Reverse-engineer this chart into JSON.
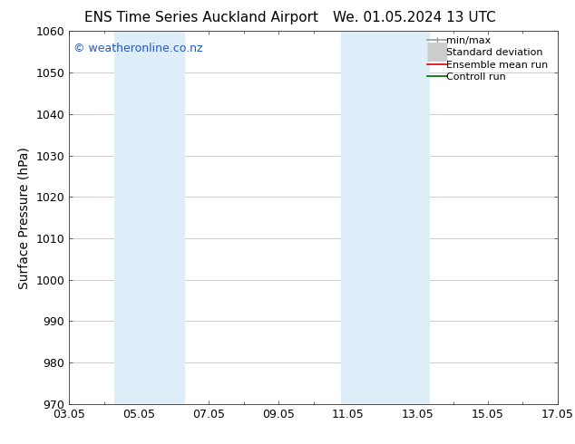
{
  "title_left": "ENS Time Series Auckland Airport",
  "title_right": "We. 01.05.2024 13 UTC",
  "ylabel": "Surface Pressure (hPa)",
  "ylim": [
    970,
    1060
  ],
  "yticks": [
    970,
    980,
    990,
    1000,
    1010,
    1020,
    1030,
    1040,
    1050,
    1060
  ],
  "xtick_labels": [
    "03.05",
    "05.05",
    "07.05",
    "09.05",
    "11.05",
    "13.05",
    "15.05",
    "17.05"
  ],
  "xtick_positions": [
    0,
    2,
    4,
    6,
    8,
    10,
    12,
    14
  ],
  "shaded_bands": [
    {
      "x_start": 1.3,
      "x_end": 3.3,
      "color": "#ddeef8",
      "alpha": 1.0
    },
    {
      "x_start": 7.8,
      "x_end": 10.3,
      "color": "#ddeef8",
      "alpha": 1.0
    }
  ],
  "watermark_text": "© weatheronline.co.nz",
  "watermark_color": "#2255cc",
  "watermark_fontsize": 9,
  "legend_entries": [
    {
      "label": "min/max",
      "color": "#999999",
      "lw": 1.2,
      "style": "line_with_ticks"
    },
    {
      "label": "Standard deviation",
      "color": "#cccccc",
      "lw": 5,
      "style": "thick"
    },
    {
      "label": "Ensemble mean run",
      "color": "#dd0000",
      "lw": 1.2,
      "style": "line"
    },
    {
      "label": "Controll run",
      "color": "#006600",
      "lw": 1.2,
      "style": "line"
    }
  ],
  "bg_color": "#ffffff",
  "grid_color": "#bbbbbb",
  "title_fontsize": 11,
  "ylabel_fontsize": 10,
  "tick_fontsize": 9,
  "legend_fontsize": 8
}
